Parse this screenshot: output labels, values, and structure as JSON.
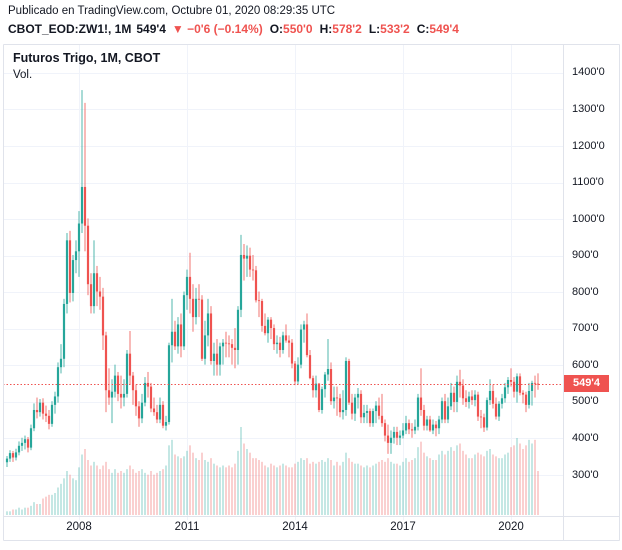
{
  "header": {
    "published_line": "Publicado en TradingView.com, Octubre 01, 2020 08:29:35 UTC",
    "symbol": "CBOT_EOD:ZW1!, 1M",
    "last_price": "549'4",
    "change": "▼ −0'6 (−0.14%)",
    "ohlc": [
      {
        "label": "O:",
        "value": "550'0"
      },
      {
        "label": "H:",
        "value": "578'2"
      },
      {
        "label": "L:",
        "value": "533'2"
      },
      {
        "label": "C:",
        "value": "549'4"
      }
    ]
  },
  "chart": {
    "title": "Futuros Trigo, 1M, CBOT",
    "indicator_label": "Vol.",
    "last_price_label": "549'4"
  },
  "chart_data": {
    "type": "candlestick",
    "title": "Futuros Trigo, 1M, CBOT",
    "symbol": "CBOT_EOD:ZW1!",
    "interval": "1M",
    "start_month": "2006-01",
    "bar_format": [
      "open",
      "high",
      "low",
      "close",
      "volume_rel"
    ],
    "last_price": 549.5,
    "price_axis": {
      "min": 188,
      "max": 1479,
      "ticks": [
        {
          "value": 1400,
          "label": "1400'0"
        },
        {
          "value": 1300,
          "label": "1300'0"
        },
        {
          "value": 1200,
          "label": "1200'0"
        },
        {
          "value": 1100,
          "label": "1100'0"
        },
        {
          "value": 1000,
          "label": "1000'0"
        },
        {
          "value": 900,
          "label": "900'0"
        },
        {
          "value": 800,
          "label": "800'0"
        },
        {
          "value": 700,
          "label": "700'0"
        },
        {
          "value": 600,
          "label": "600'0"
        },
        {
          "value": 500,
          "label": "500'0"
        },
        {
          "value": 400,
          "label": "400'0"
        },
        {
          "value": 300,
          "label": "300'0"
        }
      ]
    },
    "x_ticks": [
      {
        "label": "2008",
        "bar": 24
      },
      {
        "label": "2011",
        "bar": 60
      },
      {
        "label": "2014",
        "bar": 96
      },
      {
        "label": "2017",
        "bar": 132
      },
      {
        "label": "2020",
        "bar": 168
      }
    ],
    "colors": {
      "up": "#26a69a",
      "down": "#ef5350",
      "vol_up": "rgba(38,166,154,0.45)",
      "vol_down": "rgba(239,83,80,0.45)",
      "grid": "#f0f3fa",
      "border": "#e0e3eb",
      "text": "#131722",
      "accent_red": "#ef5350",
      "badge_bg": "#ef5350",
      "badge_text": "#ffffff",
      "background": "#ffffff"
    },
    "bars": [
      [
        335,
        352,
        322,
        345,
        2
      ],
      [
        345,
        368,
        336,
        360,
        2
      ],
      [
        360,
        366,
        336,
        348,
        3
      ],
      [
        348,
        372,
        340,
        362,
        3
      ],
      [
        362,
        392,
        354,
        380,
        4
      ],
      [
        380,
        402,
        366,
        388,
        3
      ],
      [
        388,
        408,
        370,
        398,
        4
      ],
      [
        398,
        404,
        362,
        375,
        4
      ],
      [
        375,
        438,
        368,
        428,
        5
      ],
      [
        428,
        496,
        420,
        478,
        7
      ],
      [
        478,
        512,
        455,
        472,
        6
      ],
      [
        472,
        508,
        460,
        498,
        6
      ],
      [
        498,
        510,
        452,
        468,
        9
      ],
      [
        468,
        490,
        445,
        462,
        10
      ],
      [
        462,
        478,
        425,
        440,
        11
      ],
      [
        440,
        502,
        432,
        492,
        11
      ],
      [
        492,
        528,
        468,
        515,
        12
      ],
      [
        515,
        608,
        498,
        595,
        15
      ],
      [
        595,
        658,
        578,
        618,
        17
      ],
      [
        618,
        782,
        595,
        768,
        20
      ],
      [
        768,
        962,
        742,
        942,
        24
      ],
      [
        942,
        968,
        772,
        798,
        22
      ],
      [
        798,
        902,
        775,
        888,
        20
      ],
      [
        888,
        942,
        852,
        912,
        19
      ],
      [
        912,
        1022,
        842,
        988,
        26
      ],
      [
        988,
        1353,
        962,
        1088,
        33
      ],
      [
        1088,
        1318,
        912,
        982,
        36
      ],
      [
        982,
        1002,
        792,
        822,
        30
      ],
      [
        822,
        852,
        742,
        762,
        27
      ],
      [
        762,
        942,
        742,
        852,
        29
      ],
      [
        852,
        872,
        762,
        802,
        27
      ],
      [
        802,
        842,
        752,
        788,
        25
      ],
      [
        788,
        812,
        642,
        682,
        27
      ],
      [
        682,
        692,
        472,
        532,
        29
      ],
      [
        532,
        592,
        492,
        512,
        25
      ],
      [
        512,
        562,
        442,
        528,
        23
      ],
      [
        528,
        602,
        512,
        572,
        25
      ],
      [
        572,
        582,
        502,
        522,
        23
      ],
      [
        522,
        572,
        482,
        512,
        24
      ],
      [
        512,
        562,
        488,
        522,
        23
      ],
      [
        522,
        642,
        512,
        632,
        25
      ],
      [
        632,
        694,
        548,
        572,
        27
      ],
      [
        572,
        582,
        492,
        532,
        25
      ],
      [
        532,
        548,
        462,
        488,
        23
      ],
      [
        488,
        502,
        432,
        455,
        24
      ],
      [
        455,
        522,
        442,
        498,
        25
      ],
      [
        498,
        568,
        488,
        552,
        23
      ],
      [
        552,
        582,
        512,
        542,
        22
      ],
      [
        542,
        552,
        472,
        482,
        24
      ],
      [
        482,
        512,
        462,
        472,
        22
      ],
      [
        472,
        492,
        442,
        452,
        23
      ],
      [
        452,
        512,
        442,
        492,
        24
      ],
      [
        492,
        502,
        428,
        435,
        25
      ],
      [
        435,
        462,
        422,
        445,
        27
      ],
      [
        445,
        662,
        438,
        655,
        38
      ],
      [
        655,
        782,
        608,
        692,
        41
      ],
      [
        692,
        722,
        642,
        652,
        33
      ],
      [
        652,
        732,
        632,
        712,
        32
      ],
      [
        712,
        742,
        622,
        652,
        31
      ],
      [
        652,
        802,
        642,
        792,
        32
      ],
      [
        792,
        862,
        752,
        842,
        35
      ],
      [
        842,
        908,
        742,
        782,
        38
      ],
      [
        782,
        822,
        692,
        732,
        34
      ],
      [
        732,
        812,
        712,
        782,
        31
      ],
      [
        782,
        822,
        732,
        780,
        30
      ],
      [
        780,
        792,
        612,
        618,
        34
      ],
      [
        618,
        722,
        602,
        682,
        30
      ],
      [
        682,
        782,
        652,
        742,
        29
      ],
      [
        742,
        762,
        602,
        612,
        31
      ],
      [
        612,
        662,
        572,
        632,
        28
      ],
      [
        632,
        672,
        572,
        602,
        27
      ],
      [
        602,
        662,
        572,
        652,
        26
      ],
      [
        652,
        672,
        602,
        662,
        27
      ],
      [
        662,
        692,
        622,
        660,
        26
      ],
      [
        660,
        682,
        622,
        658,
        27
      ],
      [
        658,
        672,
        602,
        648,
        26
      ],
      [
        648,
        702,
        592,
        642,
        28
      ],
      [
        642,
        762,
        602,
        752,
        35
      ],
      [
        752,
        957,
        732,
        902,
        48
      ],
      [
        902,
        932,
        832,
        892,
        39
      ],
      [
        892,
        928,
        842,
        900,
        36
      ],
      [
        900,
        922,
        842,
        862,
        34
      ],
      [
        862,
        902,
        832,
        860,
        31
      ],
      [
        860,
        872,
        772,
        778,
        31
      ],
      [
        778,
        802,
        732,
        776,
        30
      ],
      [
        776,
        782,
        692,
        708,
        29
      ],
      [
        708,
        742,
        682,
        688,
        27
      ],
      [
        688,
        732,
        662,
        725,
        26
      ],
      [
        725,
        732,
        672,
        702,
        28
      ],
      [
        702,
        712,
        642,
        658,
        27
      ],
      [
        658,
        682,
        632,
        662,
        26
      ],
      [
        662,
        678,
        622,
        642,
        27
      ],
      [
        642,
        692,
        632,
        682,
        28
      ],
      [
        682,
        712,
        662,
        668,
        27
      ],
      [
        668,
        682,
        622,
        662,
        26
      ],
      [
        662,
        672,
        592,
        605,
        26
      ],
      [
        605,
        612,
        546,
        556,
        28
      ],
      [
        556,
        622,
        548,
        602,
        29
      ],
      [
        602,
        712,
        592,
        698,
        31
      ],
      [
        698,
        722,
        662,
        712,
        30
      ],
      [
        712,
        742,
        622,
        628,
        31
      ],
      [
        628,
        642,
        562,
        565,
        28
      ],
      [
        565,
        572,
        512,
        532,
        29
      ],
      [
        532,
        572,
        512,
        550,
        28
      ],
      [
        550,
        552,
        472,
        478,
        29
      ],
      [
        478,
        542,
        468,
        535,
        30
      ],
      [
        535,
        582,
        512,
        575,
        29
      ],
      [
        575,
        672,
        558,
        590,
        31
      ],
      [
        590,
        608,
        492,
        502,
        30
      ],
      [
        502,
        542,
        482,
        512,
        27
      ],
      [
        512,
        542,
        462,
        510,
        29
      ],
      [
        510,
        522,
        458,
        472,
        27
      ],
      [
        472,
        532,
        452,
        478,
        29
      ],
      [
        478,
        622,
        462,
        612,
        34
      ],
      [
        612,
        618,
        492,
        498,
        31
      ],
      [
        498,
        522,
        452,
        468,
        29
      ],
      [
        468,
        522,
        448,
        512,
        28
      ],
      [
        512,
        538,
        482,
        522,
        28
      ],
      [
        522,
        532,
        442,
        458,
        27
      ],
      [
        458,
        492,
        442,
        470,
        26
      ],
      [
        470,
        492,
        442,
        475,
        27
      ],
      [
        475,
        482,
        432,
        442,
        26
      ],
      [
        442,
        482,
        432,
        475,
        27
      ],
      [
        475,
        502,
        442,
        490,
        28
      ],
      [
        490,
        512,
        452,
        462,
        29
      ],
      [
        462,
        522,
        432,
        442,
        30
      ],
      [
        442,
        452,
        392,
        408,
        29
      ],
      [
        408,
        438,
        358,
        388,
        31
      ],
      [
        388,
        422,
        358,
        402,
        29
      ],
      [
        402,
        432,
        386,
        418,
        28
      ],
      [
        418,
        432,
        382,
        402,
        28
      ],
      [
        402,
        422,
        382,
        408,
        27
      ],
      [
        408,
        442,
        400,
        422,
        29
      ],
      [
        422,
        462,
        412,
        442,
        31
      ],
      [
        442,
        452,
        412,
        425,
        29
      ],
      [
        425,
        442,
        402,
        422,
        30
      ],
      [
        422,
        452,
        412,
        432,
        31
      ],
      [
        432,
        522,
        422,
        512,
        37
      ],
      [
        512,
        592,
        462,
        478,
        40
      ],
      [
        478,
        492,
        422,
        435,
        34
      ],
      [
        435,
        462,
        422,
        452,
        32
      ],
      [
        452,
        462,
        418,
        422,
        31
      ],
      [
        422,
        452,
        412,
        438,
        30
      ],
      [
        438,
        448,
        406,
        428,
        30
      ],
      [
        428,
        462,
        412,
        452,
        33
      ],
      [
        452,
        512,
        442,
        502,
        35
      ],
      [
        502,
        522,
        442,
        452,
        33
      ],
      [
        452,
        512,
        442,
        488,
        35
      ],
      [
        488,
        552,
        478,
        525,
        37
      ],
      [
        525,
        542,
        472,
        500,
        35
      ],
      [
        500,
        572,
        472,
        555,
        38
      ],
      [
        555,
        588,
        512,
        545,
        39
      ],
      [
        545,
        562,
        492,
        510,
        35
      ],
      [
        510,
        532,
        486,
        500,
        33
      ],
      [
        500,
        528,
        482,
        515,
        31
      ],
      [
        515,
        532,
        492,
        505,
        31
      ],
      [
        505,
        532,
        488,
        520,
        33
      ],
      [
        520,
        528,
        448,
        460,
        34
      ],
      [
        460,
        478,
        428,
        458,
        33
      ],
      [
        458,
        468,
        418,
        430,
        32
      ],
      [
        430,
        512,
        422,
        505,
        35
      ],
      [
        505,
        562,
        492,
        530,
        36
      ],
      [
        530,
        548,
        482,
        495,
        33
      ],
      [
        495,
        512,
        452,
        460,
        32
      ],
      [
        460,
        502,
        448,
        495,
        31
      ],
      [
        495,
        522,
        482,
        510,
        31
      ],
      [
        510,
        552,
        498,
        540,
        33
      ],
      [
        540,
        568,
        522,
        560,
        34
      ],
      [
        560,
        592,
        542,
        555,
        37
      ],
      [
        555,
        568,
        512,
        528,
        38
      ],
      [
        528,
        578,
        498,
        570,
        42
      ],
      [
        570,
        578,
        518,
        525,
        39
      ],
      [
        525,
        532,
        496,
        520,
        36
      ],
      [
        520,
        528,
        472,
        492,
        38
      ],
      [
        492,
        552,
        482,
        530,
        41
      ],
      [
        530,
        558,
        490,
        552,
        39
      ],
      [
        552,
        572,
        512,
        550,
        41
      ],
      [
        550,
        578.25,
        533.25,
        549.5,
        24
      ]
    ]
  }
}
